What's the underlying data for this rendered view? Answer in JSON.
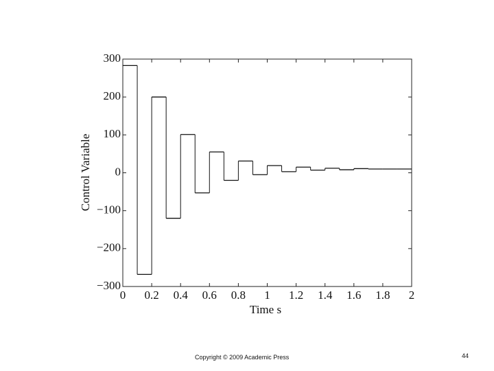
{
  "chart_data": {
    "type": "step",
    "x_label": "Time s",
    "y_label": "Control Variable",
    "x": [
      0,
      0.1,
      0.2,
      0.3,
      0.4,
      0.5,
      0.6,
      0.7,
      0.8,
      0.9,
      1.0,
      1.1,
      1.2,
      1.3,
      1.4,
      1.5,
      1.6,
      1.7,
      1.8,
      1.9
    ],
    "values": [
      283,
      -268,
      200,
      -120,
      101,
      -53,
      55,
      -20,
      31,
      -5,
      19,
      3,
      15,
      7,
      12,
      8,
      11,
      10,
      10,
      10
    ],
    "color": "#111111",
    "xlim": [
      0,
      2
    ],
    "xticks": [
      0,
      0.2,
      0.4,
      0.6,
      0.8,
      1,
      1.2,
      1.4,
      1.6,
      1.8,
      2
    ],
    "ylim": [
      -300,
      300
    ],
    "yticks": [
      {
        "value": -300,
        "label": "−300"
      },
      {
        "value": -200,
        "label": "−200"
      },
      {
        "value": -100,
        "label": "−100"
      },
      0,
      100,
      200,
      300
    ],
    "grid": false
  },
  "footer": {
    "copyright": "Copyright © 2009 Academic Press",
    "page_number": "44"
  }
}
